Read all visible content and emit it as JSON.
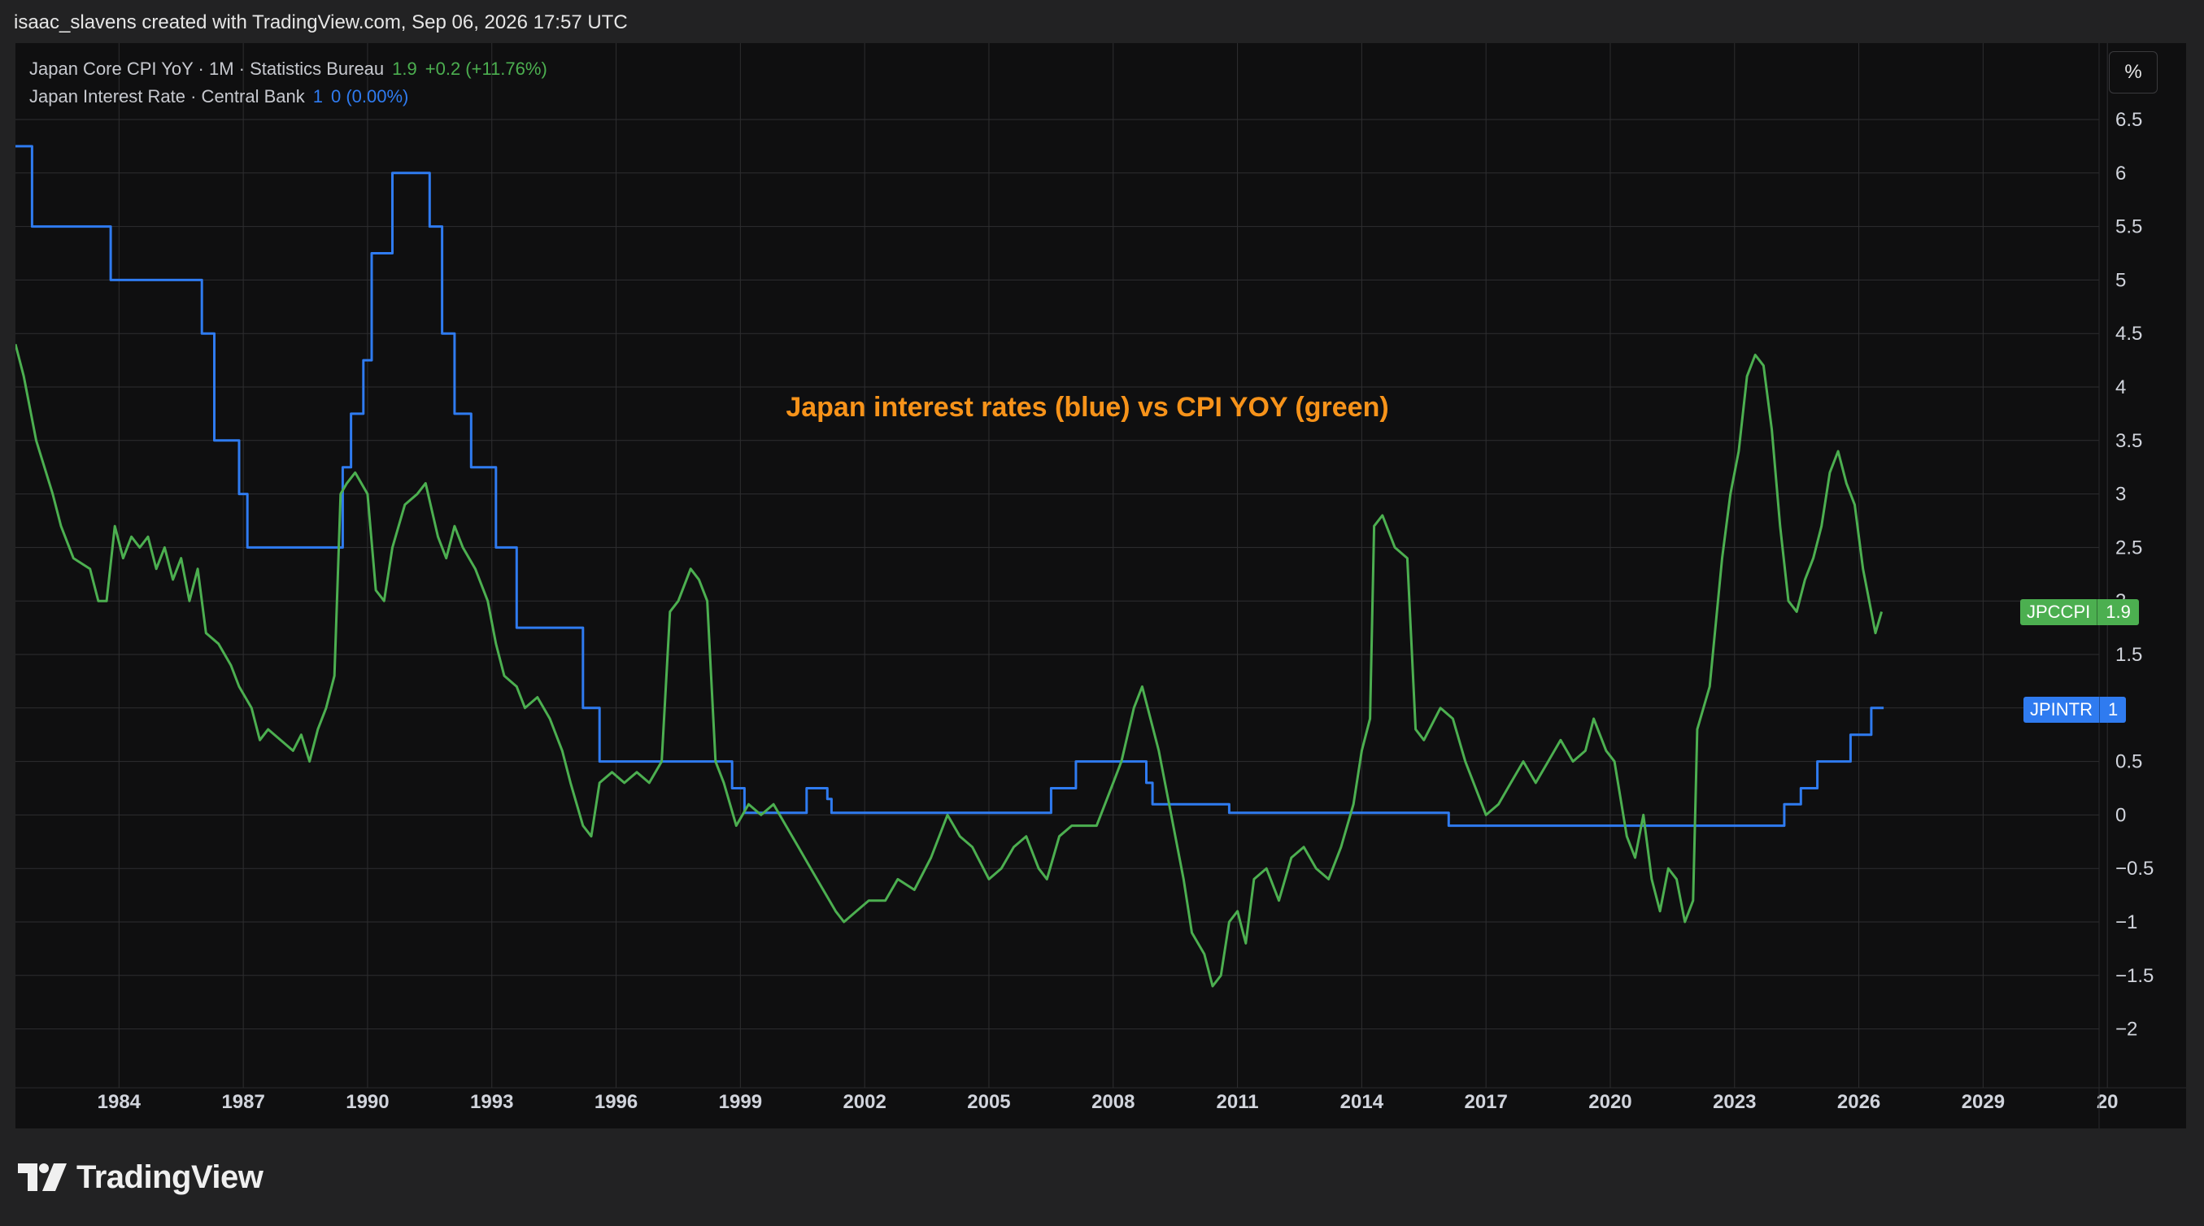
{
  "header": {
    "attribution": "isaac_slavens created with TradingView.com, Sep 06, 2026 17:57 UTC"
  },
  "legend": {
    "cpi": {
      "title": "Japan Core CPI YoY · 1M · Statistics Bureau",
      "value": "1.9",
      "change": "+0.2 (+11.76%)"
    },
    "rate": {
      "title": "Japan Interest Rate · Central Bank",
      "value": "1",
      "change": "0 (0.00%)"
    }
  },
  "units_button": "%",
  "price_tags": {
    "cpi": {
      "symbol": "JPCCPI",
      "value": "1.9"
    },
    "rate": {
      "symbol": "JPINTR",
      "value": "1"
    }
  },
  "branding": {
    "name": "TradingView"
  },
  "colors": {
    "cpi": "#4caf50",
    "rate": "#2f7bf0",
    "annotation": "#f7931a",
    "background": "#0f0f10",
    "grid": "#2e2e30"
  },
  "chart_data": {
    "type": "line",
    "annotation": "Japan interest rates (blue) vs CPI YOY (green)",
    "x_tick_labels": [
      "1984",
      "1987",
      "1990",
      "1993",
      "1996",
      "1999",
      "2002",
      "2005",
      "2008",
      "2011",
      "2014",
      "2017",
      "2020",
      "2023",
      "2026",
      "2029",
      "20"
    ],
    "y_tick_labels": [
      "6.5",
      "6",
      "5.5",
      "5",
      "4.5",
      "4",
      "3.5",
      "3",
      "2.5",
      "2",
      "1.5",
      "1",
      "0.5",
      "0",
      "−0.5",
      "−1",
      "−1.5",
      "−2"
    ],
    "xlim": [
      1981.5,
      2031.8
    ],
    "ylim": [
      -2.3,
      6.9
    ],
    "grid": true,
    "series": [
      {
        "name": "JPINTR",
        "step": true,
        "points": [
          [
            1981.5,
            6.25
          ],
          [
            1981.9,
            5.5
          ],
          [
            1983.8,
            5.0
          ],
          [
            1986.0,
            4.5
          ],
          [
            1986.3,
            3.5
          ],
          [
            1986.9,
            3.0
          ],
          [
            1987.1,
            2.5
          ],
          [
            1989.4,
            3.25
          ],
          [
            1989.6,
            3.75
          ],
          [
            1989.9,
            4.25
          ],
          [
            1990.1,
            5.25
          ],
          [
            1990.6,
            6.0
          ],
          [
            1991.5,
            5.5
          ],
          [
            1991.8,
            4.5
          ],
          [
            1992.1,
            3.75
          ],
          [
            1992.5,
            3.25
          ],
          [
            1993.1,
            2.5
          ],
          [
            1993.6,
            1.75
          ],
          [
            1995.2,
            1.0
          ],
          [
            1995.6,
            0.5
          ],
          [
            1998.8,
            0.25
          ],
          [
            1999.1,
            0.02
          ],
          [
            2000.6,
            0.25
          ],
          [
            2001.1,
            0.15
          ],
          [
            2001.2,
            0.02
          ],
          [
            2006.5,
            0.25
          ],
          [
            2007.1,
            0.5
          ],
          [
            2008.8,
            0.3
          ],
          [
            2008.95,
            0.1
          ],
          [
            2010.8,
            0.02
          ],
          [
            2016.1,
            -0.1
          ],
          [
            2024.2,
            0.1
          ],
          [
            2024.6,
            0.25
          ],
          [
            2025.0,
            0.5
          ],
          [
            2025.8,
            0.75
          ],
          [
            2026.3,
            1.0
          ],
          [
            2026.6,
            1.0
          ]
        ]
      },
      {
        "name": "JPCCPI",
        "step": false,
        "points": [
          [
            1981.5,
            4.4
          ],
          [
            1981.7,
            4.1
          ],
          [
            1982.0,
            3.5
          ],
          [
            1982.4,
            3.0
          ],
          [
            1982.6,
            2.7
          ],
          [
            1982.9,
            2.4
          ],
          [
            1983.3,
            2.3
          ],
          [
            1983.5,
            2.0
          ],
          [
            1983.7,
            2.0
          ],
          [
            1983.9,
            2.7
          ],
          [
            1984.1,
            2.4
          ],
          [
            1984.3,
            2.6
          ],
          [
            1984.5,
            2.5
          ],
          [
            1984.7,
            2.6
          ],
          [
            1984.9,
            2.3
          ],
          [
            1985.1,
            2.5
          ],
          [
            1985.3,
            2.2
          ],
          [
            1985.5,
            2.4
          ],
          [
            1985.7,
            2.0
          ],
          [
            1985.9,
            2.3
          ],
          [
            1986.1,
            1.7
          ],
          [
            1986.4,
            1.6
          ],
          [
            1986.7,
            1.4
          ],
          [
            1986.9,
            1.2
          ],
          [
            1987.2,
            1.0
          ],
          [
            1987.4,
            0.7
          ],
          [
            1987.6,
            0.8
          ],
          [
            1987.9,
            0.7
          ],
          [
            1988.2,
            0.6
          ],
          [
            1988.4,
            0.75
          ],
          [
            1988.6,
            0.5
          ],
          [
            1988.8,
            0.8
          ],
          [
            1989.0,
            1.0
          ],
          [
            1989.2,
            1.3
          ],
          [
            1989.35,
            3.0
          ],
          [
            1989.5,
            3.1
          ],
          [
            1989.7,
            3.2
          ],
          [
            1990.0,
            3.0
          ],
          [
            1990.2,
            2.1
          ],
          [
            1990.4,
            2.0
          ],
          [
            1990.6,
            2.5
          ],
          [
            1990.9,
            2.9
          ],
          [
            1991.2,
            3.0
          ],
          [
            1991.4,
            3.1
          ],
          [
            1991.7,
            2.6
          ],
          [
            1991.9,
            2.4
          ],
          [
            1992.1,
            2.7
          ],
          [
            1992.3,
            2.5
          ],
          [
            1992.6,
            2.3
          ],
          [
            1992.9,
            2.0
          ],
          [
            1993.1,
            1.6
          ],
          [
            1993.3,
            1.3
          ],
          [
            1993.6,
            1.2
          ],
          [
            1993.8,
            1.0
          ],
          [
            1994.1,
            1.1
          ],
          [
            1994.4,
            0.9
          ],
          [
            1994.7,
            0.6
          ],
          [
            1994.9,
            0.3
          ],
          [
            1995.2,
            -0.1
          ],
          [
            1995.4,
            -0.2
          ],
          [
            1995.6,
            0.3
          ],
          [
            1995.9,
            0.4
          ],
          [
            1996.2,
            0.3
          ],
          [
            1996.5,
            0.4
          ],
          [
            1996.8,
            0.3
          ],
          [
            1997.1,
            0.5
          ],
          [
            1997.3,
            1.9
          ],
          [
            1997.5,
            2.0
          ],
          [
            1997.8,
            2.3
          ],
          [
            1998.0,
            2.2
          ],
          [
            1998.2,
            2.0
          ],
          [
            1998.4,
            0.5
          ],
          [
            1998.6,
            0.3
          ],
          [
            1998.9,
            -0.1
          ],
          [
            1999.2,
            0.1
          ],
          [
            1999.5,
            0.0
          ],
          [
            1999.8,
            0.1
          ],
          [
            2000.1,
            -0.1
          ],
          [
            2000.4,
            -0.3
          ],
          [
            2000.7,
            -0.5
          ],
          [
            2001.0,
            -0.7
          ],
          [
            2001.3,
            -0.9
          ],
          [
            2001.5,
            -1.0
          ],
          [
            2001.8,
            -0.9
          ],
          [
            2002.1,
            -0.8
          ],
          [
            2002.5,
            -0.8
          ],
          [
            2002.8,
            -0.6
          ],
          [
            2003.2,
            -0.7
          ],
          [
            2003.6,
            -0.4
          ],
          [
            2004.0,
            0.0
          ],
          [
            2004.3,
            -0.2
          ],
          [
            2004.6,
            -0.3
          ],
          [
            2005.0,
            -0.6
          ],
          [
            2005.3,
            -0.5
          ],
          [
            2005.6,
            -0.3
          ],
          [
            2005.9,
            -0.2
          ],
          [
            2006.2,
            -0.5
          ],
          [
            2006.4,
            -0.6
          ],
          [
            2006.7,
            -0.2
          ],
          [
            2007.0,
            -0.1
          ],
          [
            2007.3,
            -0.1
          ],
          [
            2007.6,
            -0.1
          ],
          [
            2007.9,
            0.2
          ],
          [
            2008.2,
            0.5
          ],
          [
            2008.5,
            1.0
          ],
          [
            2008.7,
            1.2
          ],
          [
            2008.9,
            0.9
          ],
          [
            2009.1,
            0.6
          ],
          [
            2009.4,
            0.0
          ],
          [
            2009.7,
            -0.6
          ],
          [
            2009.9,
            -1.1
          ],
          [
            2010.2,
            -1.3
          ],
          [
            2010.4,
            -1.6
          ],
          [
            2010.6,
            -1.5
          ],
          [
            2010.8,
            -1.0
          ],
          [
            2011.0,
            -0.9
          ],
          [
            2011.2,
            -1.2
          ],
          [
            2011.4,
            -0.6
          ],
          [
            2011.7,
            -0.5
          ],
          [
            2012.0,
            -0.8
          ],
          [
            2012.3,
            -0.4
          ],
          [
            2012.6,
            -0.3
          ],
          [
            2012.9,
            -0.5
          ],
          [
            2013.2,
            -0.6
          ],
          [
            2013.5,
            -0.3
          ],
          [
            2013.8,
            0.1
          ],
          [
            2014.0,
            0.6
          ],
          [
            2014.2,
            0.9
          ],
          [
            2014.3,
            2.7
          ],
          [
            2014.5,
            2.8
          ],
          [
            2014.8,
            2.5
          ],
          [
            2015.1,
            2.4
          ],
          [
            2015.3,
            0.8
          ],
          [
            2015.5,
            0.7
          ],
          [
            2015.9,
            1.0
          ],
          [
            2016.2,
            0.9
          ],
          [
            2016.5,
            0.5
          ],
          [
            2016.8,
            0.2
          ],
          [
            2017.0,
            0.0
          ],
          [
            2017.3,
            0.1
          ],
          [
            2017.6,
            0.3
          ],
          [
            2017.9,
            0.5
          ],
          [
            2018.2,
            0.3
          ],
          [
            2018.5,
            0.5
          ],
          [
            2018.8,
            0.7
          ],
          [
            2019.1,
            0.5
          ],
          [
            2019.4,
            0.6
          ],
          [
            2019.6,
            0.9
          ],
          [
            2019.9,
            0.6
          ],
          [
            2020.1,
            0.5
          ],
          [
            2020.4,
            -0.2
          ],
          [
            2020.6,
            -0.4
          ],
          [
            2020.8,
            0.0
          ],
          [
            2021.0,
            -0.6
          ],
          [
            2021.2,
            -0.9
          ],
          [
            2021.4,
            -0.5
          ],
          [
            2021.6,
            -0.6
          ],
          [
            2021.8,
            -1.0
          ],
          [
            2022.0,
            -0.8
          ],
          [
            2022.1,
            0.8
          ],
          [
            2022.4,
            1.2
          ],
          [
            2022.7,
            2.4
          ],
          [
            2022.9,
            3.0
          ],
          [
            2023.1,
            3.4
          ],
          [
            2023.3,
            4.1
          ],
          [
            2023.5,
            4.3
          ],
          [
            2023.7,
            4.2
          ],
          [
            2023.9,
            3.6
          ],
          [
            2024.1,
            2.7
          ],
          [
            2024.3,
            2.0
          ],
          [
            2024.5,
            1.9
          ],
          [
            2024.7,
            2.2
          ],
          [
            2024.9,
            2.4
          ],
          [
            2025.1,
            2.7
          ],
          [
            2025.3,
            3.2
          ],
          [
            2025.5,
            3.4
          ],
          [
            2025.7,
            3.1
          ],
          [
            2025.9,
            2.9
          ],
          [
            2026.1,
            2.3
          ],
          [
            2026.3,
            1.9
          ],
          [
            2026.4,
            1.7
          ],
          [
            2026.55,
            1.9
          ]
        ]
      }
    ]
  }
}
